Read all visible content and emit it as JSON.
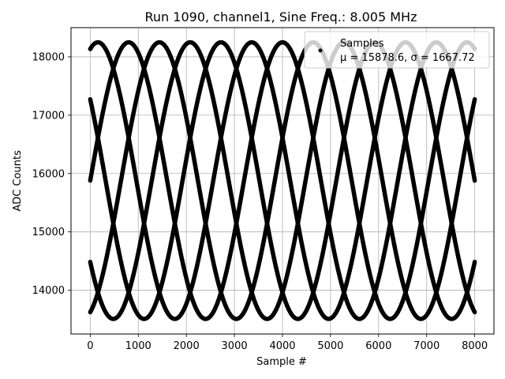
{
  "chart_data": {
    "type": "scatter",
    "title": "Run 1090, channel1, Sine Freq.: 8.005 MHz",
    "xlabel": "Sample #",
    "ylabel": "ADC Counts",
    "xlim": [
      -400,
      8400
    ],
    "ylim": [
      13250,
      18500
    ],
    "xticks": [
      0,
      1000,
      2000,
      3000,
      4000,
      5000,
      6000,
      7000,
      8000
    ],
    "yticks": [
      14000,
      15000,
      16000,
      17000,
      18000
    ],
    "grid": true,
    "legend": {
      "placement": "top-right",
      "title": "Samples",
      "label": "μ = 15878.6, σ = 1667.72"
    },
    "series": [
      {
        "name": "Samples",
        "color": "#000000",
        "marker": "dot",
        "model": "sine",
        "mean": 15878.6,
        "amplitude": 2370,
        "period_samples": 3200,
        "traces": [
          {
            "phase_deg": 288,
            "y_at_0": 13620
          },
          {
            "phase_deg": 0,
            "y_at_0": 15850
          },
          {
            "phase_deg": 72,
            "y_at_0": 18130
          },
          {
            "phase_deg": 144,
            "y_at_0": 17280
          },
          {
            "phase_deg": 216,
            "y_at_0": 14510
          }
        ],
        "x_range": [
          0,
          8000
        ]
      }
    ]
  }
}
